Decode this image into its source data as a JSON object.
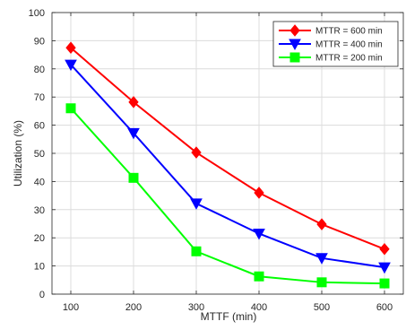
{
  "chart_data": {
    "type": "line",
    "title": "",
    "xlabel": "MTTF (min)",
    "ylabel": "Utilization (%)",
    "x": [
      100,
      200,
      300,
      400,
      500,
      600
    ],
    "xlim": [
      70,
      630
    ],
    "ylim": [
      0,
      100
    ],
    "xticks": [
      100,
      200,
      300,
      400,
      500,
      600
    ],
    "yticks": [
      0,
      10,
      20,
      30,
      40,
      50,
      60,
      70,
      80,
      90,
      100
    ],
    "grid": true,
    "legend_position": "top-right",
    "series": [
      {
        "name": "MTTR = 600 min",
        "values": [
          87.5,
          68.2,
          50.3,
          36.0,
          24.8,
          16.0
        ],
        "color": "#ff0000",
        "marker": "diamond"
      },
      {
        "name": "MTTR = 400 min",
        "values": [
          81.5,
          57.2,
          32.2,
          21.5,
          12.8,
          9.5
        ],
        "color": "#0000ff",
        "marker": "triangle-down"
      },
      {
        "name": "MTTR = 200 min",
        "values": [
          66.0,
          41.3,
          15.2,
          6.3,
          4.2,
          3.8
        ],
        "color": "#00ff00",
        "marker": "square"
      }
    ]
  }
}
